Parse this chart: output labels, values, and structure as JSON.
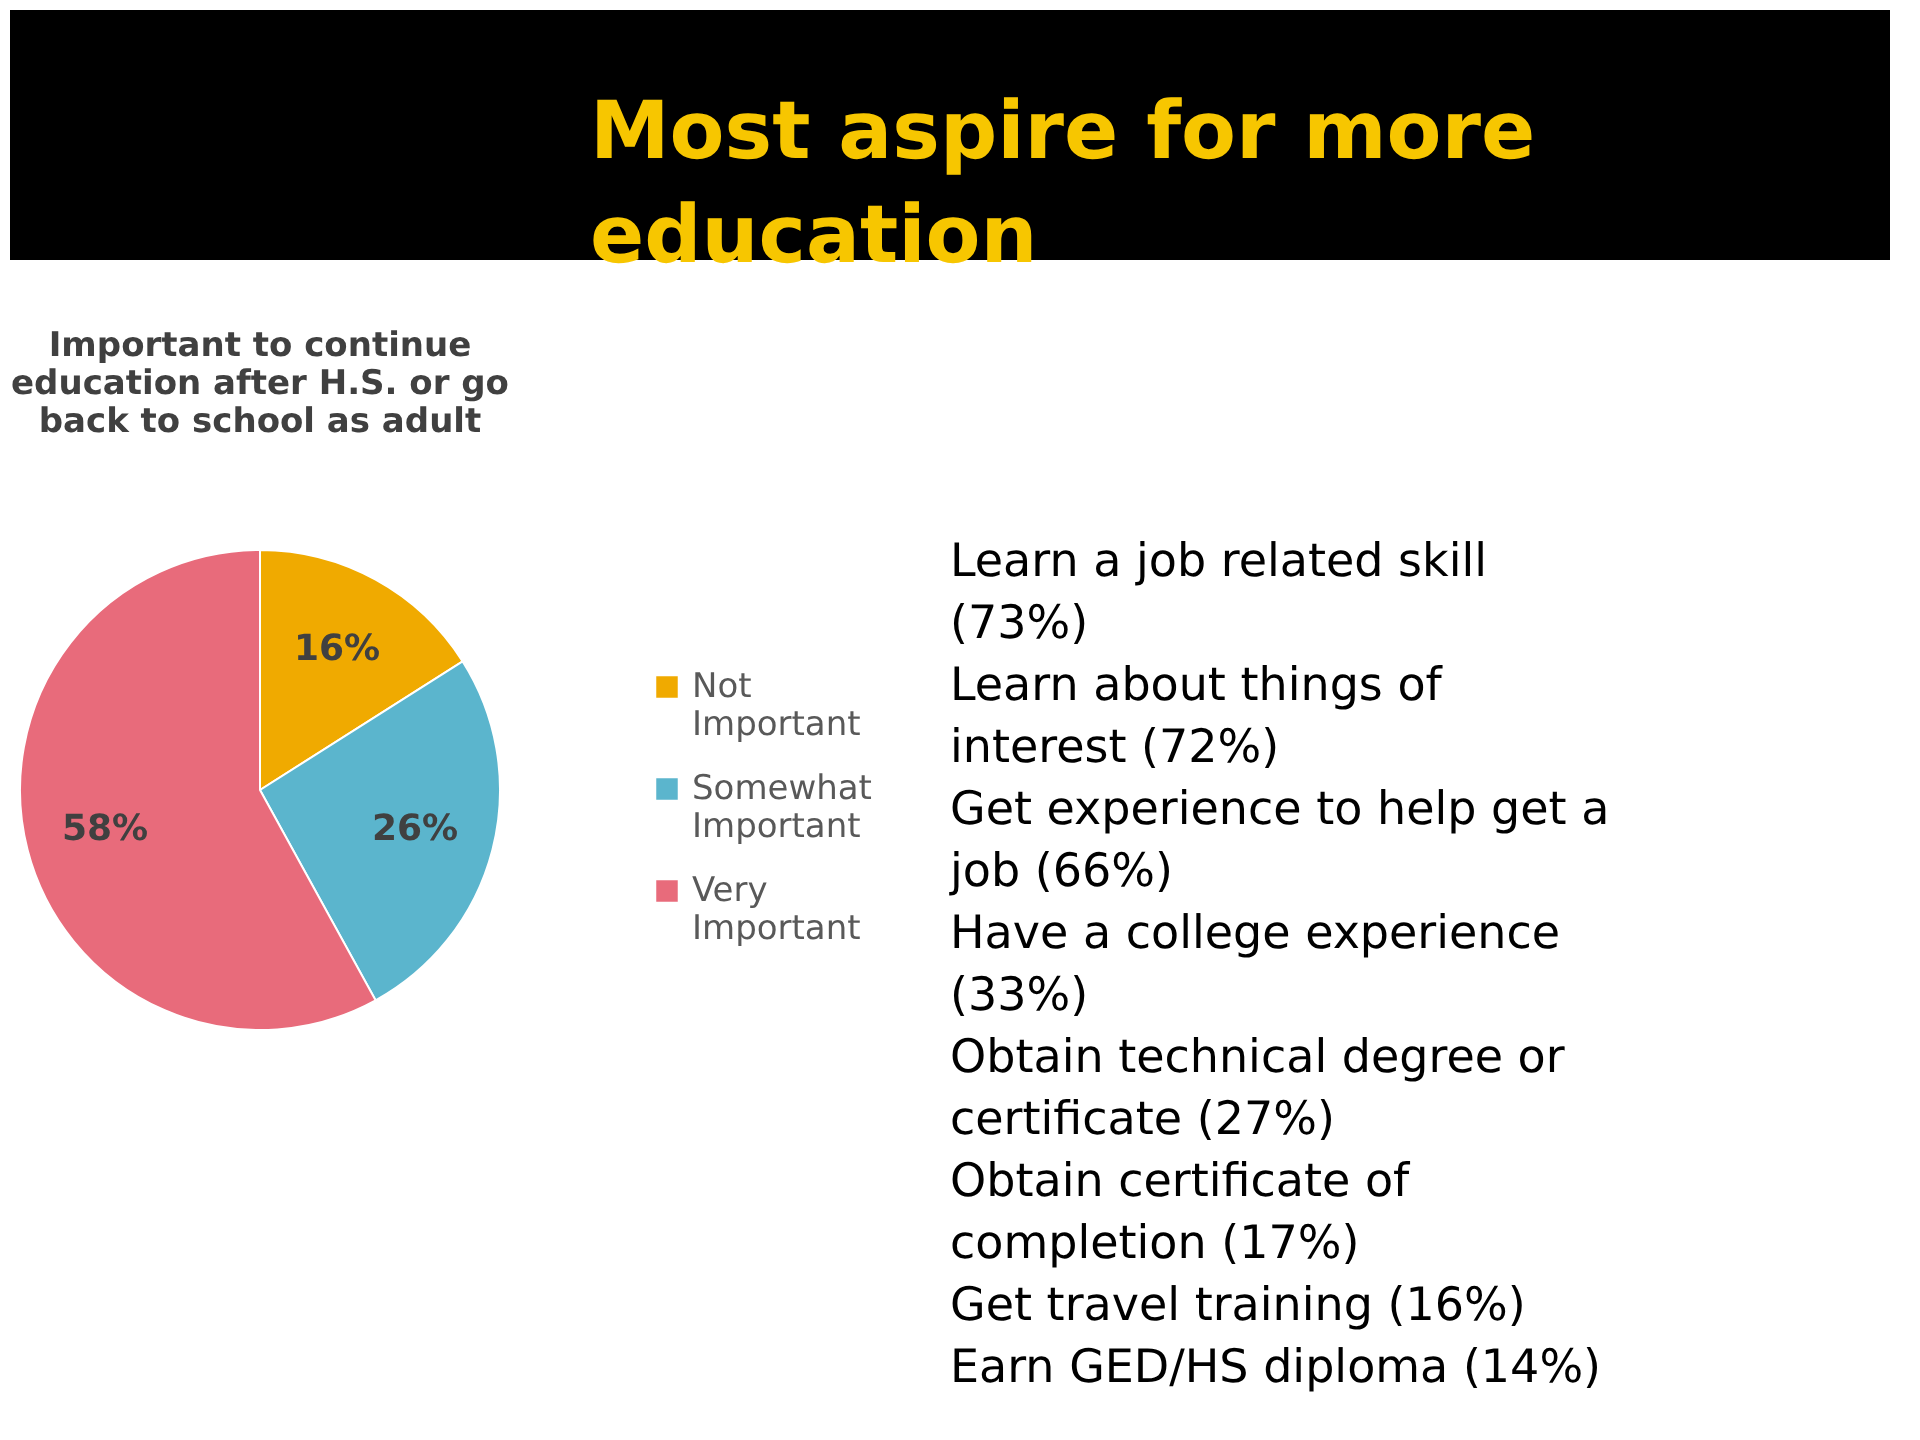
{
  "chart_data": [
    {
      "type": "other",
      "title": "Most aspire for more education"
    },
    {
      "type": "pie",
      "title": "Important to continue education after H.S. or go back to school as adult",
      "categories": [
        "Not Important",
        "Somewhat Important",
        "Very Important"
      ],
      "values": [
        16,
        26,
        58
      ],
      "colors": [
        "#f0aa00",
        "#5bb5cd",
        "#e86b7b"
      ],
      "value_labels": [
        "16%",
        "26%",
        "58%"
      ],
      "legend": "right"
    },
    {
      "type": "other",
      "annotations": [
        "Learn a job related skill (73%)",
        "Learn about things of interest (72%)",
        "Get experience to help get a job (66%)",
        "Have a college experience (33%)",
        "Obtain technical degree or certificate (27%)",
        "Obtain certificate of completion (17%)",
        "Get travel training (16%)",
        "Earn GED/HS diploma (14%)"
      ]
    }
  ]
}
